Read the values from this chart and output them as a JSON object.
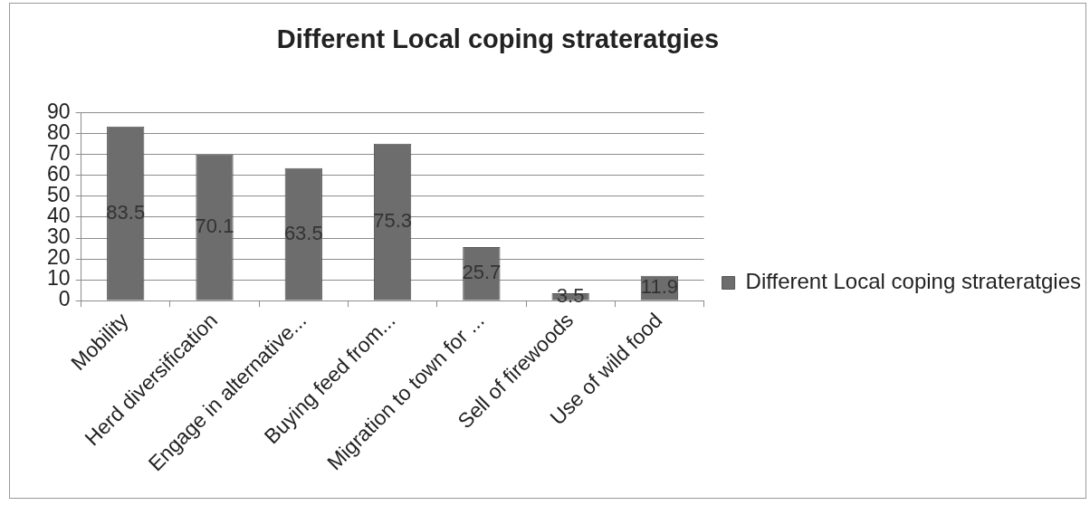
{
  "chart_data": {
    "type": "bar",
    "title": "Different Local coping strateratgies",
    "categories": [
      "Mobility",
      "Herd diversification",
      "Engage in alternative...",
      "Buying feed from...",
      "Migration to town for ...",
      "Sell of firewoods",
      "Use of wild food"
    ],
    "series": [
      {
        "name": "Different Local coping strateratgies",
        "color": "#6d6d6d",
        "values": [
          83.5,
          70.1,
          63.5,
          75.3,
          25.7,
          3.5,
          11.9
        ]
      }
    ],
    "ylim": [
      0,
      90
    ],
    "yticks": [
      0,
      10,
      20,
      30,
      40,
      50,
      60,
      70,
      80,
      90
    ],
    "grid": "y",
    "legend": "right",
    "data_labels": true
  }
}
